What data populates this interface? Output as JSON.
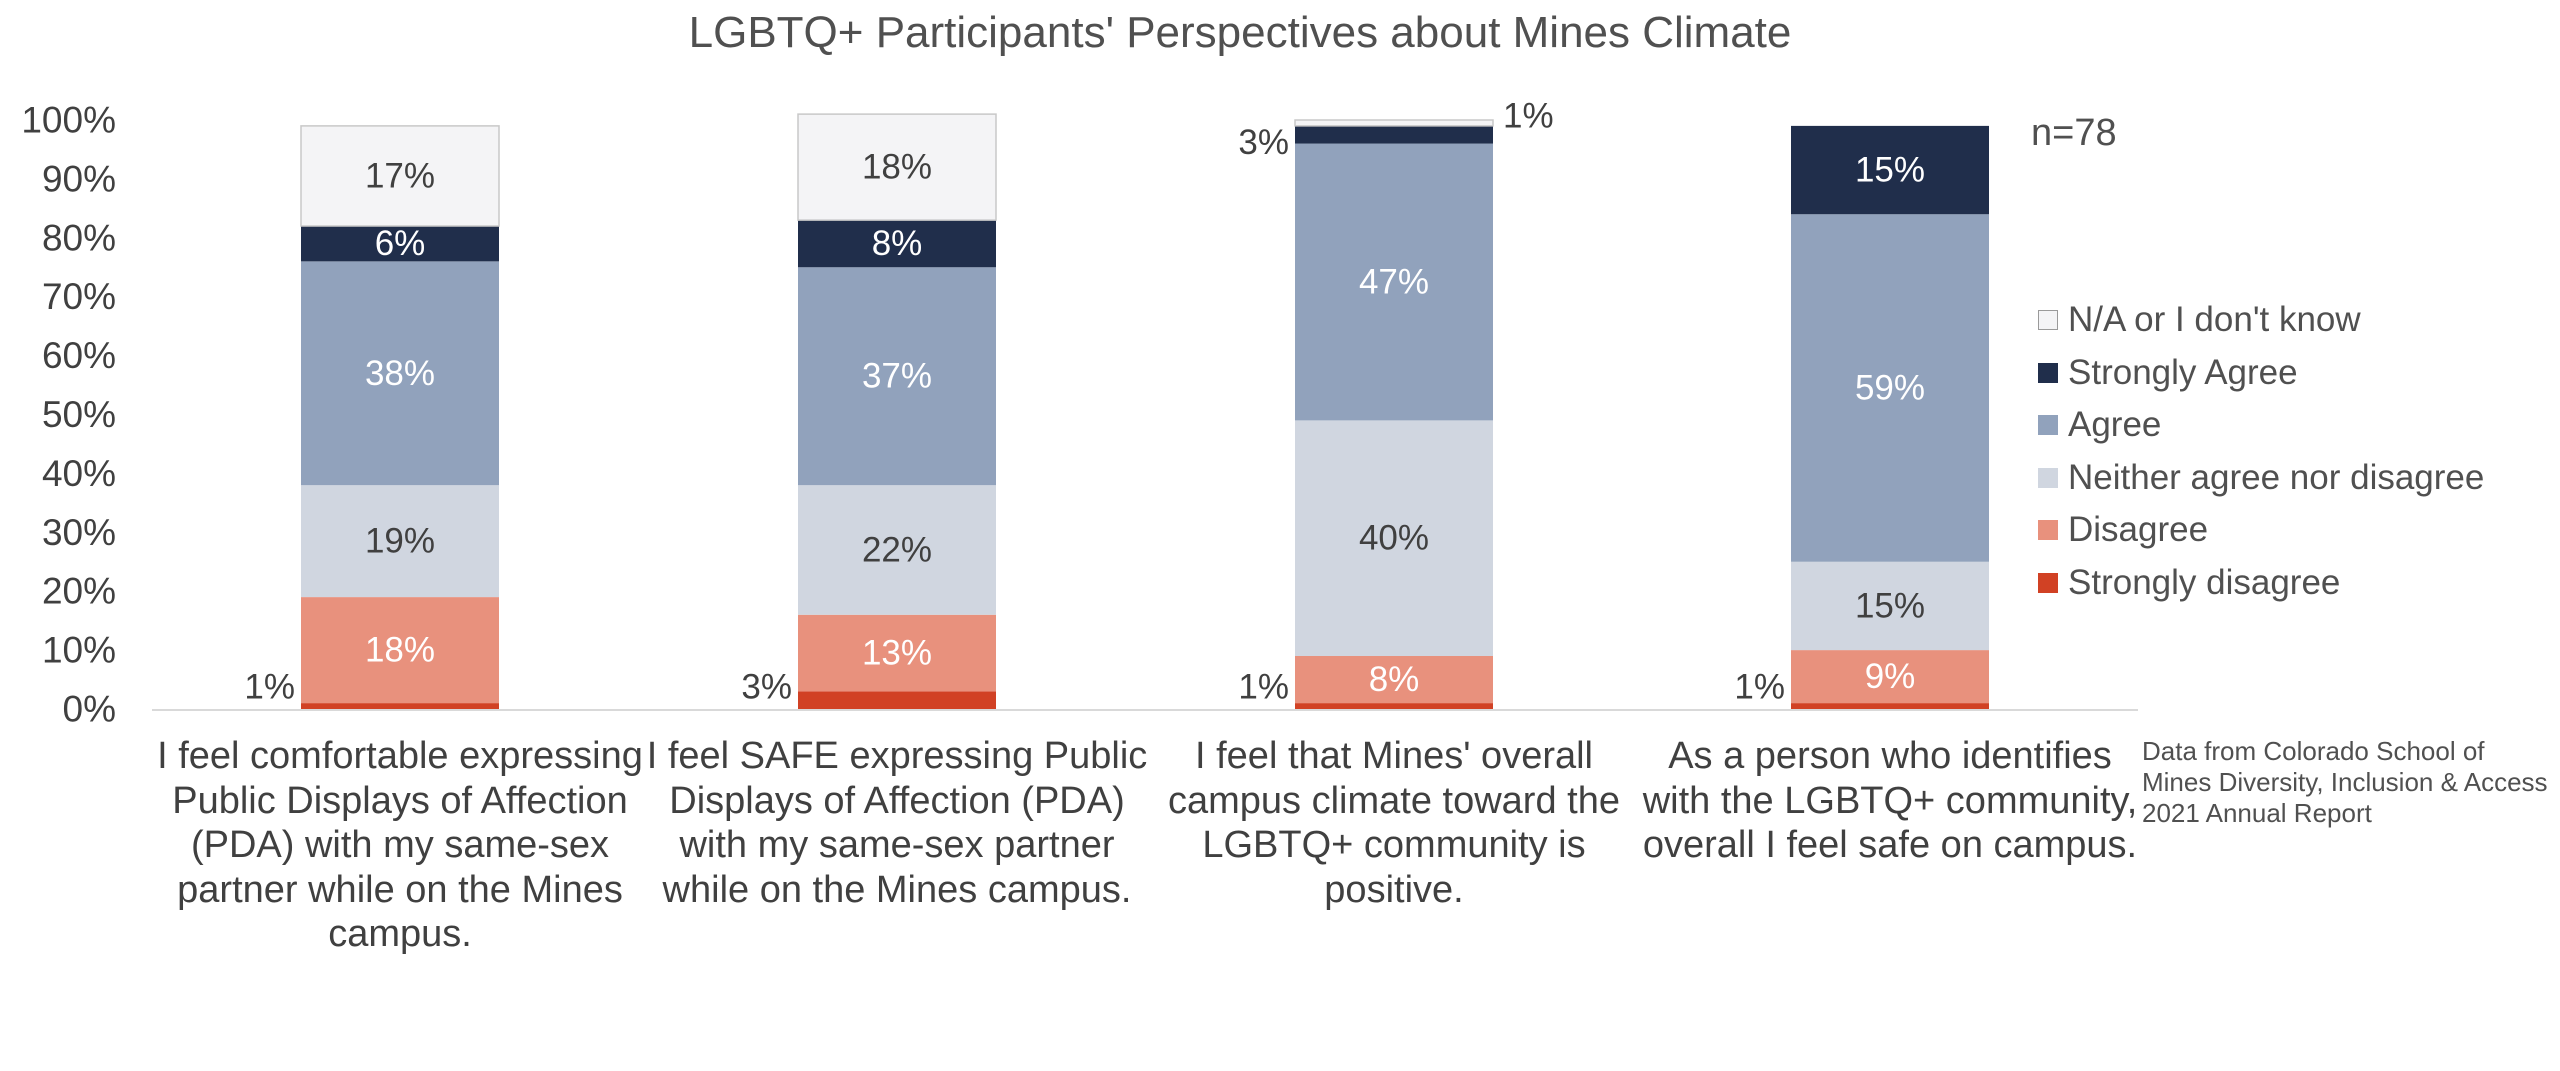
{
  "chart_data": {
    "type": "bar",
    "stacked": true,
    "title": "LGBTQ+ Participants' Perspectives about Mines Climate",
    "sample_note": "n=78",
    "source_note": "Data from Colorado School of Mines Diversity, Inclusion & Access 2021 Annual Report",
    "ylim": [
      0,
      100
    ],
    "y_ticks": [
      "0%",
      "10%",
      "20%",
      "30%",
      "40%",
      "50%",
      "60%",
      "70%",
      "80%",
      "90%",
      "100%"
    ],
    "grid": false,
    "legend_position": "right",
    "categories": [
      "I feel comfortable expressing Public Displays of Affection (PDA) with my same-sex partner while on the Mines campus.",
      "I feel SAFE expressing Public Displays of Affection (PDA) with my same-sex partner while on the Mines campus.",
      "I feel that Mines' overall campus climate toward the LGBTQ+ community is positive.",
      "As a person who identifies with the LGBTQ+ community, overall I feel safe on campus."
    ],
    "series": [
      {
        "name": "Strongly disagree",
        "color": "#D14124",
        "values": [
          1,
          3,
          1,
          1
        ],
        "labels": [
          "1%",
          "3%",
          "1%",
          "1%"
        ]
      },
      {
        "name": "Disagree",
        "color": "#E8917D",
        "values": [
          18,
          13,
          8,
          9
        ],
        "labels": [
          "18%",
          "13%",
          "8%",
          "9%"
        ]
      },
      {
        "name": "Neither agree nor disagree",
        "color": "#D0D6E0",
        "values": [
          19,
          22,
          40,
          15
        ],
        "labels": [
          "19%",
          "22%",
          "40%",
          "15%"
        ]
      },
      {
        "name": "Agree",
        "color": "#91A2BC",
        "values": [
          38,
          37,
          47,
          59
        ],
        "labels": [
          "38%",
          "37%",
          "47%",
          "59%"
        ]
      },
      {
        "name": "Strongly Agree",
        "color": "#202E4B",
        "values": [
          6,
          8,
          3,
          15
        ],
        "labels": [
          "6%",
          "8%",
          "3%",
          "15%"
        ]
      },
      {
        "name": "N/A or I don't know",
        "color": "#F4F4F6",
        "values": [
          17,
          18,
          1,
          0
        ],
        "labels": [
          "17%",
          "18%",
          "1%",
          ""
        ]
      }
    ]
  }
}
